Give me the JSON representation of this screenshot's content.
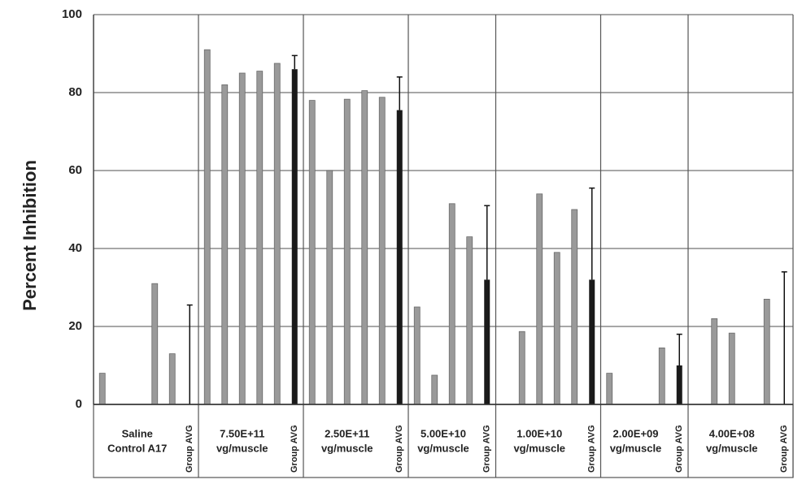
{
  "chart_data": {
    "type": "bar",
    "ylabel": "Percent Inhibition",
    "ylim": [
      0,
      100
    ],
    "yticks": [
      0,
      20,
      40,
      60,
      80,
      100
    ],
    "grid": true,
    "avg_label": "Group AVG",
    "bar_color": "#9a9a9a",
    "avg_color": "#1a1a1a",
    "groups": [
      {
        "label": [
          "Saline",
          "Control A17"
        ],
        "values": [
          8,
          null,
          null,
          31,
          13
        ],
        "avg": 0,
        "error": 25.5
      },
      {
        "label": [
          "7.50E+11",
          "vg/muscle"
        ],
        "values": [
          91,
          82,
          85,
          85.5,
          87.5
        ],
        "avg": 86,
        "error": 3.5
      },
      {
        "label": [
          "2.50E+11",
          "vg/muscle"
        ],
        "values": [
          78,
          60,
          78.3,
          80.5,
          78.8
        ],
        "avg": 75.5,
        "error": 8.5
      },
      {
        "label": [
          "5.00E+10",
          "vg/muscle"
        ],
        "values": [
          25,
          7.5,
          51.5,
          43
        ],
        "avg": 32,
        "error": 19
      },
      {
        "label": [
          "1.00E+10",
          "vg/muscle"
        ],
        "values": [
          null,
          18.7,
          54,
          39,
          50
        ],
        "avg": 32,
        "error": 23.5
      },
      {
        "label": [
          "2.00E+09",
          "vg/muscle"
        ],
        "values": [
          8,
          null,
          null,
          14.5
        ],
        "avg": 10,
        "error": 8
      },
      {
        "label": [
          "4.00E+08",
          "vg/muscle"
        ],
        "values": [
          null,
          22,
          18.3,
          null,
          27
        ],
        "avg": 0,
        "error": 34
      }
    ]
  }
}
